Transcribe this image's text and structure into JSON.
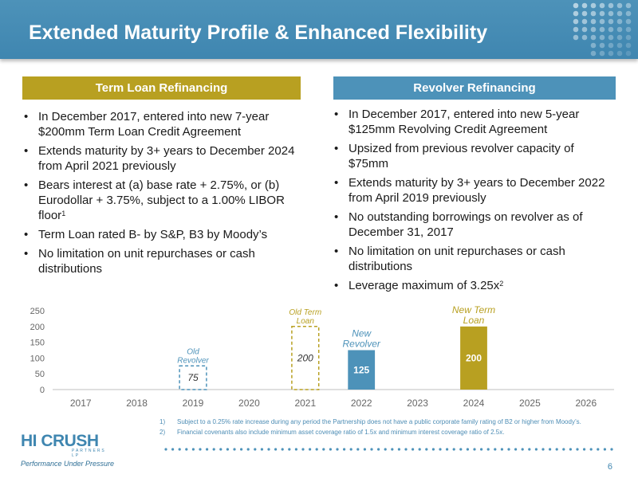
{
  "header": {
    "title": "Extended Maturity Profile & Enhanced Flexibility"
  },
  "left": {
    "heading": "Term Loan Refinancing",
    "bullets": [
      "In December 2017, entered into new 7-year $200mm Term Loan Credit Agreement",
      "Extends maturity by 3+ years to December 2024 from April 2021 previously",
      "Bears interest at (a) base rate + 2.75%, or (b) Eurodollar + 3.75%, subject to a 1.00% LIBOR floor",
      "Term Loan rated B- by S&P, B3 by Moody’s",
      "No limitation on unit repurchases or cash distributions"
    ],
    "footnote_ref": "1"
  },
  "right": {
    "heading": "Revolver Refinancing",
    "bullets": [
      "In December 2017, entered into new 5-year $125mm Revolving Credit Agreement",
      "Upsized from previous revolver capacity of $75mm",
      "Extends maturity by 3+ years to December 2022 from April 2019 previously",
      "No outstanding borrowings on revolver as of December 31, 2017",
      "No limitation on unit repurchases or cash distributions",
      "Leverage maximum of 3.25x"
    ],
    "footnote_ref": "2"
  },
  "bullet_char": "•",
  "chart_data": {
    "type": "bar",
    "categories": [
      "2017",
      "2018",
      "2019",
      "2020",
      "2021",
      "2022",
      "2023",
      "2024",
      "2025",
      "2026"
    ],
    "yticks": [
      "0",
      "50",
      "100",
      "150",
      "200",
      "250"
    ],
    "ylim": [
      0,
      250
    ],
    "grid": false,
    "bars": [
      {
        "category": "2019",
        "value": 75,
        "label": "75",
        "annotation": [
          "Old",
          "Revolver"
        ],
        "style": "dashed",
        "color": "#4d92b9"
      },
      {
        "category": "2021",
        "value": 200,
        "label": "200",
        "annotation": [
          "Old Term",
          "Loan"
        ],
        "style": "dashed",
        "color": "#b8a021"
      },
      {
        "category": "2022",
        "value": 125,
        "label": "125",
        "annotation": [
          "New",
          "Revolver"
        ],
        "style": "solid",
        "color": "#4d92b9"
      },
      {
        "category": "2024",
        "value": 200,
        "label": "200",
        "annotation": [
          "New Term",
          "Loan"
        ],
        "style": "solid",
        "color": "#b8a021"
      }
    ]
  },
  "footnotes": [
    {
      "num": "1)",
      "text": "Subject to a 0.25% rate increase during any period the Partnership does not have a public corporate family rating of B2 or higher from Moody’s."
    },
    {
      "num": "2)",
      "text": "Financial covenants also include minimum asset coverage ratio of 1.5x  and minimum interest coverage ratio of 2.5x."
    }
  ],
  "logo": {
    "name": "HI CRUSH",
    "sub": "PARTNERS LP",
    "tagline": "Performance Under Pressure"
  },
  "page_number": "6",
  "colors": {
    "accent_blue": "#4d92b9",
    "accent_gold": "#b8a021",
    "axis_text": "#666666"
  }
}
